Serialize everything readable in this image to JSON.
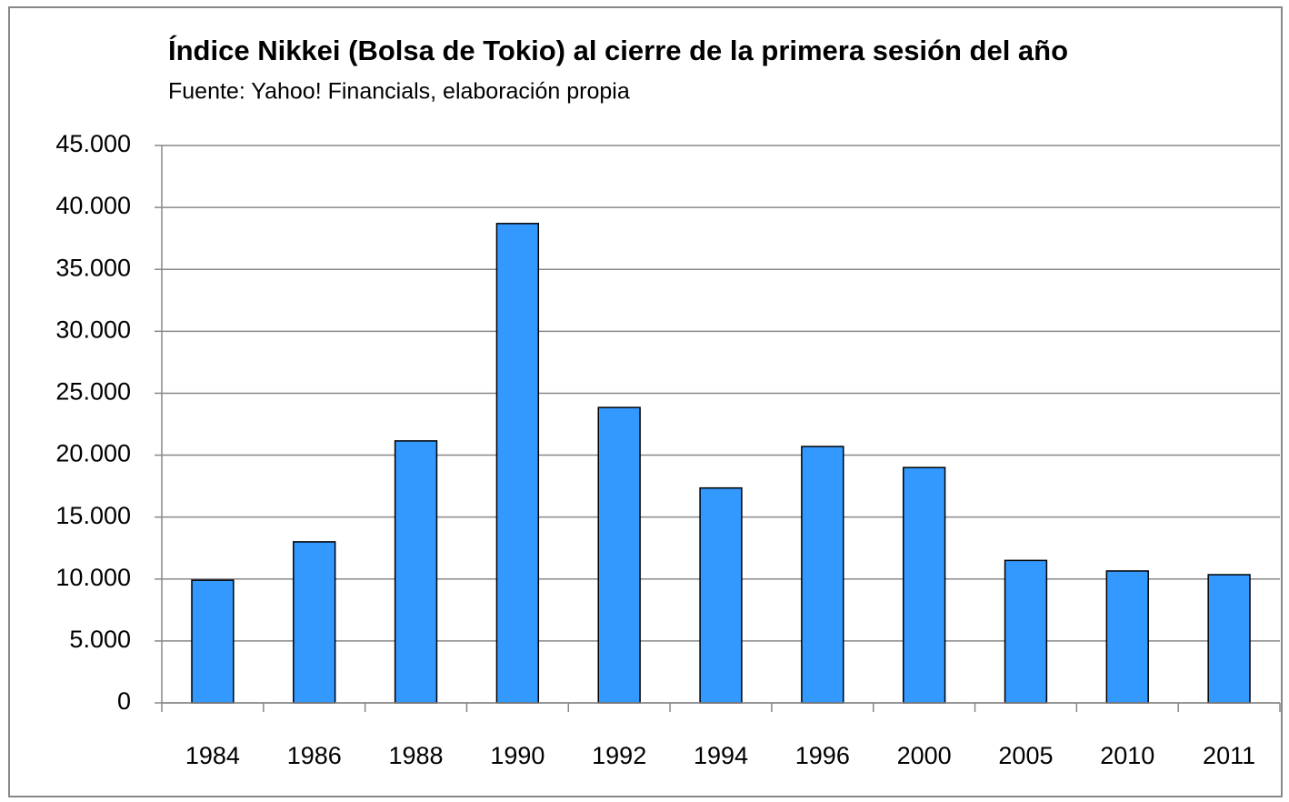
{
  "chart_data": {
    "type": "bar",
    "title": "Índice Nikkei (Bolsa de Tokio) al cierre de la primera sesión del año",
    "subtitle": "Fuente: Yahoo! Financials, elaboración propia",
    "categories": [
      "1984",
      "1986",
      "1988",
      "1990",
      "1992",
      "1994",
      "1996",
      "2000",
      "2005",
      "2010",
      "2011"
    ],
    "values": [
      9900,
      13000,
      21150,
      38700,
      23850,
      17350,
      20700,
      19000,
      11500,
      10650,
      10350
    ],
    "color": "#3399ff",
    "ylim": [
      0,
      45000
    ],
    "yticks": [
      0,
      {
        "value": 5000,
        "label": "5.000"
      },
      {
        "value": 10000,
        "label": "10.000"
      },
      {
        "value": 15000,
        "label": "15.000"
      },
      {
        "value": 20000,
        "label": "20.000"
      },
      {
        "value": 25000,
        "label": "25.000"
      },
      {
        "value": 30000,
        "label": "30.000"
      },
      {
        "value": 35000,
        "label": "35.000"
      },
      {
        "value": 40000,
        "label": "40.000"
      },
      {
        "value": 45000,
        "label": "45.000"
      }
    ],
    "grid": true
  }
}
